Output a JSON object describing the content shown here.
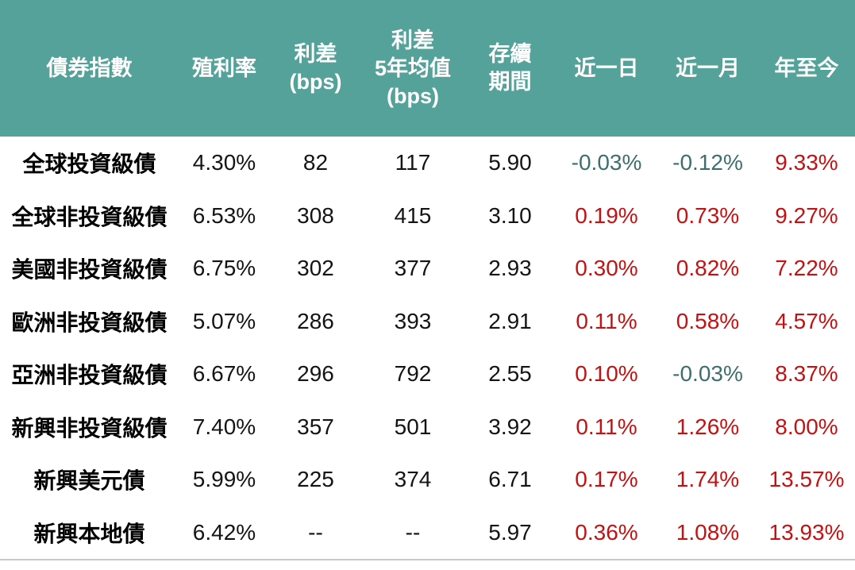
{
  "chart_data": {
    "type": "table",
    "title": "",
    "columns": [
      "債券指數",
      "殖利率",
      "利差\n(bps)",
      "利差\n5年均值\n(bps)",
      "存續\n期間",
      "近一日",
      "近一月",
      "年至今"
    ],
    "change_column_indexes": [
      5,
      6,
      7
    ],
    "rows": [
      [
        "全球投資級債",
        "4.30%",
        "82",
        "117",
        "5.90",
        "-0.03%",
        "-0.12%",
        "9.33%"
      ],
      [
        "全球非投資級債",
        "6.53%",
        "308",
        "415",
        "3.10",
        "0.19%",
        "0.73%",
        "9.27%"
      ],
      [
        "美國非投資級債",
        "6.75%",
        "302",
        "377",
        "2.93",
        "0.30%",
        "0.82%",
        "7.22%"
      ],
      [
        "歐洲非投資級債",
        "5.07%",
        "286",
        "393",
        "2.91",
        "0.11%",
        "0.58%",
        "4.57%"
      ],
      [
        "亞洲非投資級債",
        "6.67%",
        "296",
        "792",
        "2.55",
        "0.10%",
        "-0.03%",
        "8.37%"
      ],
      [
        "新興非投資級債",
        "7.40%",
        "357",
        "501",
        "3.92",
        "0.11%",
        "1.26%",
        "8.00%"
      ],
      [
        "新興美元債",
        "5.99%",
        "225",
        "374",
        "6.71",
        "0.17%",
        "1.74%",
        "13.57%"
      ],
      [
        "新興本地債",
        "6.42%",
        "--",
        "--",
        "5.97",
        "0.36%",
        "1.08%",
        "13.93%"
      ]
    ]
  },
  "colors": {
    "background": "#ffffff",
    "header_bg": "#55a29a",
    "header_text": "#ffffff",
    "positive_change": "#c41111",
    "negative_change": "#3e6f6d",
    "neutral_text": "#141414",
    "row_label_text": "#000000",
    "bottom_border": "#c9c9c9"
  }
}
